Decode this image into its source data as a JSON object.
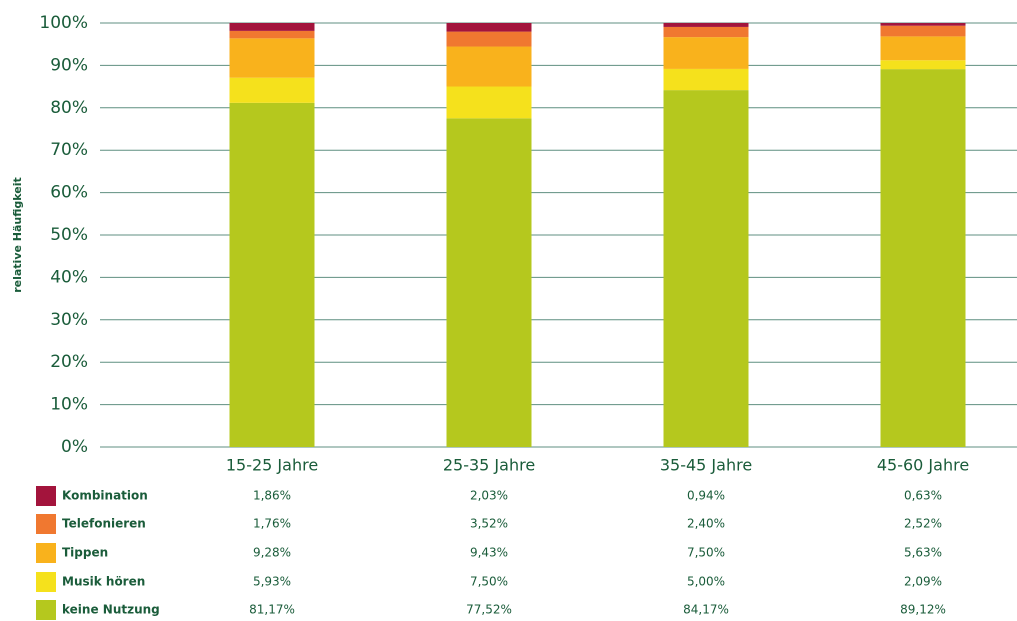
{
  "chart_data": {
    "type": "stacked_bar",
    "y_label": "relative Häufigkeit",
    "categories": [
      "15-25 Jahre",
      "25-35 Jahre",
      "35-45 Jahre",
      "45-60 Jahre"
    ],
    "series": [
      {
        "name": "Kombination",
        "color": "#a3143c",
        "values": [
          1.86,
          2.03,
          0.94,
          0.63
        ],
        "value_labels": [
          "1,86%",
          "2,03%",
          "0,94%",
          "0,63%"
        ]
      },
      {
        "name": "Telefonieren",
        "color": "#f07830",
        "values": [
          1.76,
          3.52,
          2.4,
          2.52
        ],
        "value_labels": [
          "1,76%",
          "3,52%",
          "2,40%",
          "2,52%"
        ]
      },
      {
        "name": "Tippen",
        "color": "#f9b21c",
        "values": [
          9.28,
          9.43,
          7.5,
          5.63
        ],
        "value_labels": [
          "9,28%",
          "9,43%",
          "7,50%",
          "5,63%"
        ]
      },
      {
        "name": "Musik hören",
        "color": "#f5e11c",
        "values": [
          5.93,
          7.5,
          5.0,
          2.09
        ],
        "value_labels": [
          "5,93%",
          "7,50%",
          "5,00%",
          "2,09%"
        ]
      },
      {
        "name": "keine Nutzung",
        "color": "#b5c81e",
        "values": [
          81.17,
          77.52,
          84.17,
          89.12
        ],
        "value_labels": [
          "81,17%",
          "77,52%",
          "84,17%",
          "89,12%"
        ]
      }
    ],
    "ylim": [
      0,
      100
    ],
    "yticks": [
      {
        "value": 0,
        "label": "0%"
      },
      {
        "value": 10,
        "label": "10%"
      },
      {
        "value": 20,
        "label": "20%"
      },
      {
        "value": 30,
        "label": "30%"
      },
      {
        "value": 40,
        "label": "40%"
      },
      {
        "value": 50,
        "label": "50%"
      },
      {
        "value": 60,
        "label": "60%"
      },
      {
        "value": 70,
        "label": "70%"
      },
      {
        "value": 80,
        "label": "80%"
      },
      {
        "value": 90,
        "label": "90%"
      },
      {
        "value": 100,
        "label": "100%"
      }
    ],
    "grid": true
  }
}
